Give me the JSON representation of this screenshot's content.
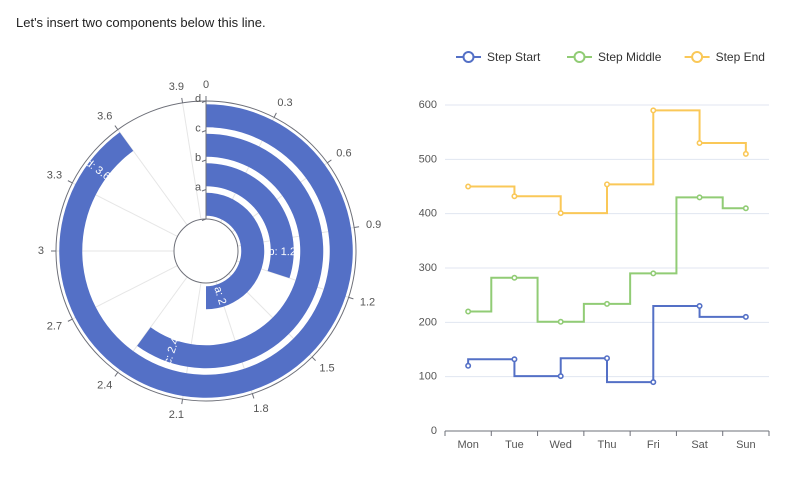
{
  "intro_text": "Let's insert two components below this line.",
  "chart_data": [
    {
      "type": "bar",
      "subtype": "polar-radial-bar",
      "categories": [
        "a",
        "b",
        "c",
        "d"
      ],
      "values": [
        2,
        1.2,
        2.4,
        3.6
      ],
      "data_labels": [
        "a: 2",
        "b: 1.2",
        "c: 2.4",
        "d: 3.6"
      ],
      "angle_axis": {
        "min": 0,
        "max": 4,
        "ticks": [
          "0",
          "0.3",
          "0.6",
          "0.9",
          "1.2",
          "1.5",
          "1.8",
          "2.1",
          "2.4",
          "2.7",
          "3",
          "3.3",
          "3.6",
          "3.9"
        ],
        "tick_values": [
          0,
          0.3,
          0.6,
          0.9,
          1.2,
          1.5,
          1.8,
          2.1,
          2.4,
          2.7,
          3,
          3.3,
          3.6,
          3.9
        ]
      },
      "color": "#5470c6"
    },
    {
      "type": "line",
      "subtype": "step",
      "categories": [
        "Mon",
        "Tue",
        "Wed",
        "Thu",
        "Fri",
        "Sat",
        "Sun"
      ],
      "ylim": [
        0,
        600
      ],
      "yticks": [
        0,
        100,
        200,
        300,
        400,
        500,
        600
      ],
      "legend_position": "top-center",
      "series": [
        {
          "name": "Step Start",
          "step": "start",
          "color": "#5470c6",
          "values": [
            120,
            132,
            101,
            134,
            90,
            230,
            210
          ]
        },
        {
          "name": "Step Middle",
          "step": "middle",
          "color": "#91cc75",
          "values": [
            220,
            282,
            201,
            234,
            290,
            430,
            410
          ]
        },
        {
          "name": "Step End",
          "step": "end",
          "color": "#fac858",
          "values": [
            450,
            432,
            401,
            454,
            590,
            530,
            510
          ]
        }
      ]
    }
  ]
}
